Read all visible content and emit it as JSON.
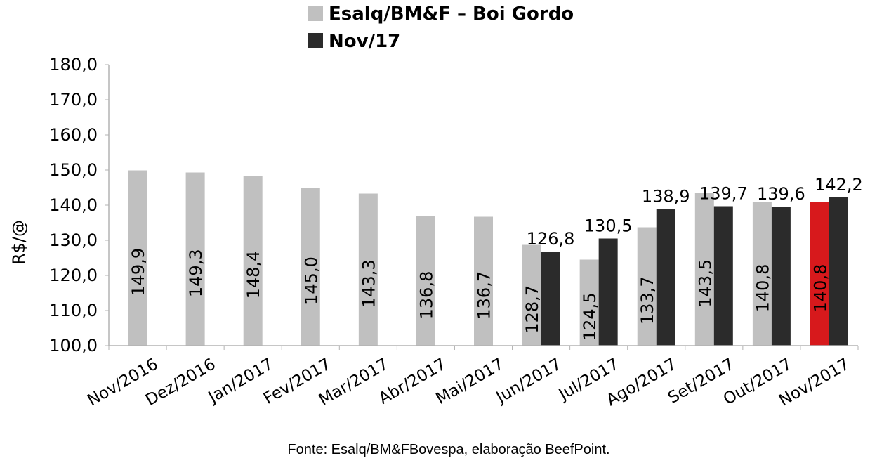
{
  "chart_data": {
    "type": "bar",
    "title": "",
    "ylabel": "R$/@",
    "xlabel": "",
    "ylim": [
      100,
      180
    ],
    "yticks": [
      "100,0",
      "110,0",
      "120,0",
      "130,0",
      "140,0",
      "150,0",
      "160,0",
      "170,0",
      "180,0"
    ],
    "legend_position": "top",
    "categories": [
      "Nov/2016",
      "Dez/2016",
      "Jan/2017",
      "Fev/2017",
      "Mar/2017",
      "Abr/2017",
      "Mai/2017",
      "Jun/2017",
      "Jul/2017",
      "Ago/2017",
      "Set/2017",
      "Out/2017",
      "Nov/2017"
    ],
    "series": [
      {
        "name": "Esalq/BM&F – Boi Gordo",
        "color": "#c0c0c0",
        "values": [
          149.9,
          149.3,
          148.4,
          145.0,
          143.3,
          136.8,
          136.7,
          128.7,
          124.5,
          133.7,
          143.5,
          140.8,
          140.8
        ],
        "labels": [
          "149,9",
          "149,3",
          "148,4",
          "145,0",
          "143,3",
          "136,8",
          "136,7",
          "128,7",
          "124,5",
          "133,7",
          "143,5",
          "140,8",
          "140,8"
        ],
        "highlight_index": 12,
        "highlight_color": "#d7191c"
      },
      {
        "name": "Nov/17",
        "color": "#2b2b2b",
        "values": [
          null,
          null,
          null,
          null,
          null,
          null,
          null,
          126.8,
          130.5,
          138.9,
          139.7,
          139.6,
          142.2
        ],
        "labels": [
          null,
          null,
          null,
          null,
          null,
          null,
          null,
          "126,8",
          "130,5",
          "138,9",
          "139,7",
          "139,6",
          "142,2"
        ]
      }
    ]
  },
  "source": "Fonte: Esalq/BM&FBovespa, elaboração BeefPoint."
}
